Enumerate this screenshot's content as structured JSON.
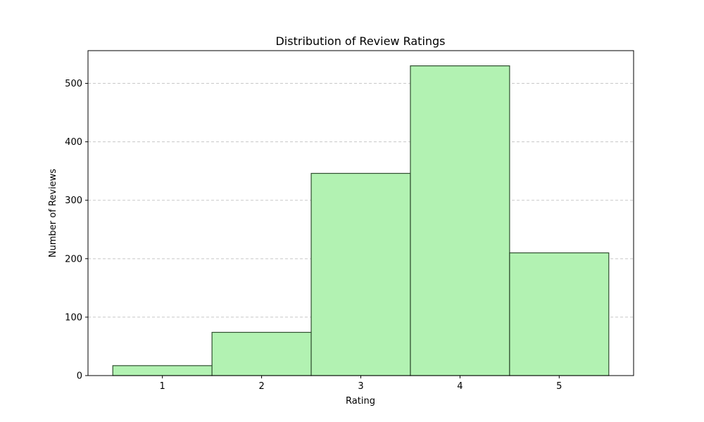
{
  "chart_data": {
    "type": "bar",
    "title": "Distribution of Review Ratings",
    "xlabel": "Rating",
    "ylabel": "Number of Reviews",
    "categories": [
      "1",
      "2",
      "3",
      "4",
      "5"
    ],
    "values": [
      17,
      74,
      346,
      530,
      210
    ],
    "x_range": [
      0.25,
      5.75
    ],
    "ylim": [
      0,
      556
    ],
    "y_ticks": [
      0,
      100,
      200,
      300,
      400,
      500
    ],
    "grid": "y-dashed",
    "bar_fill": "#b2f2b2",
    "bar_edge": "#2f4f2f",
    "grid_color": "#c8c8c8"
  }
}
